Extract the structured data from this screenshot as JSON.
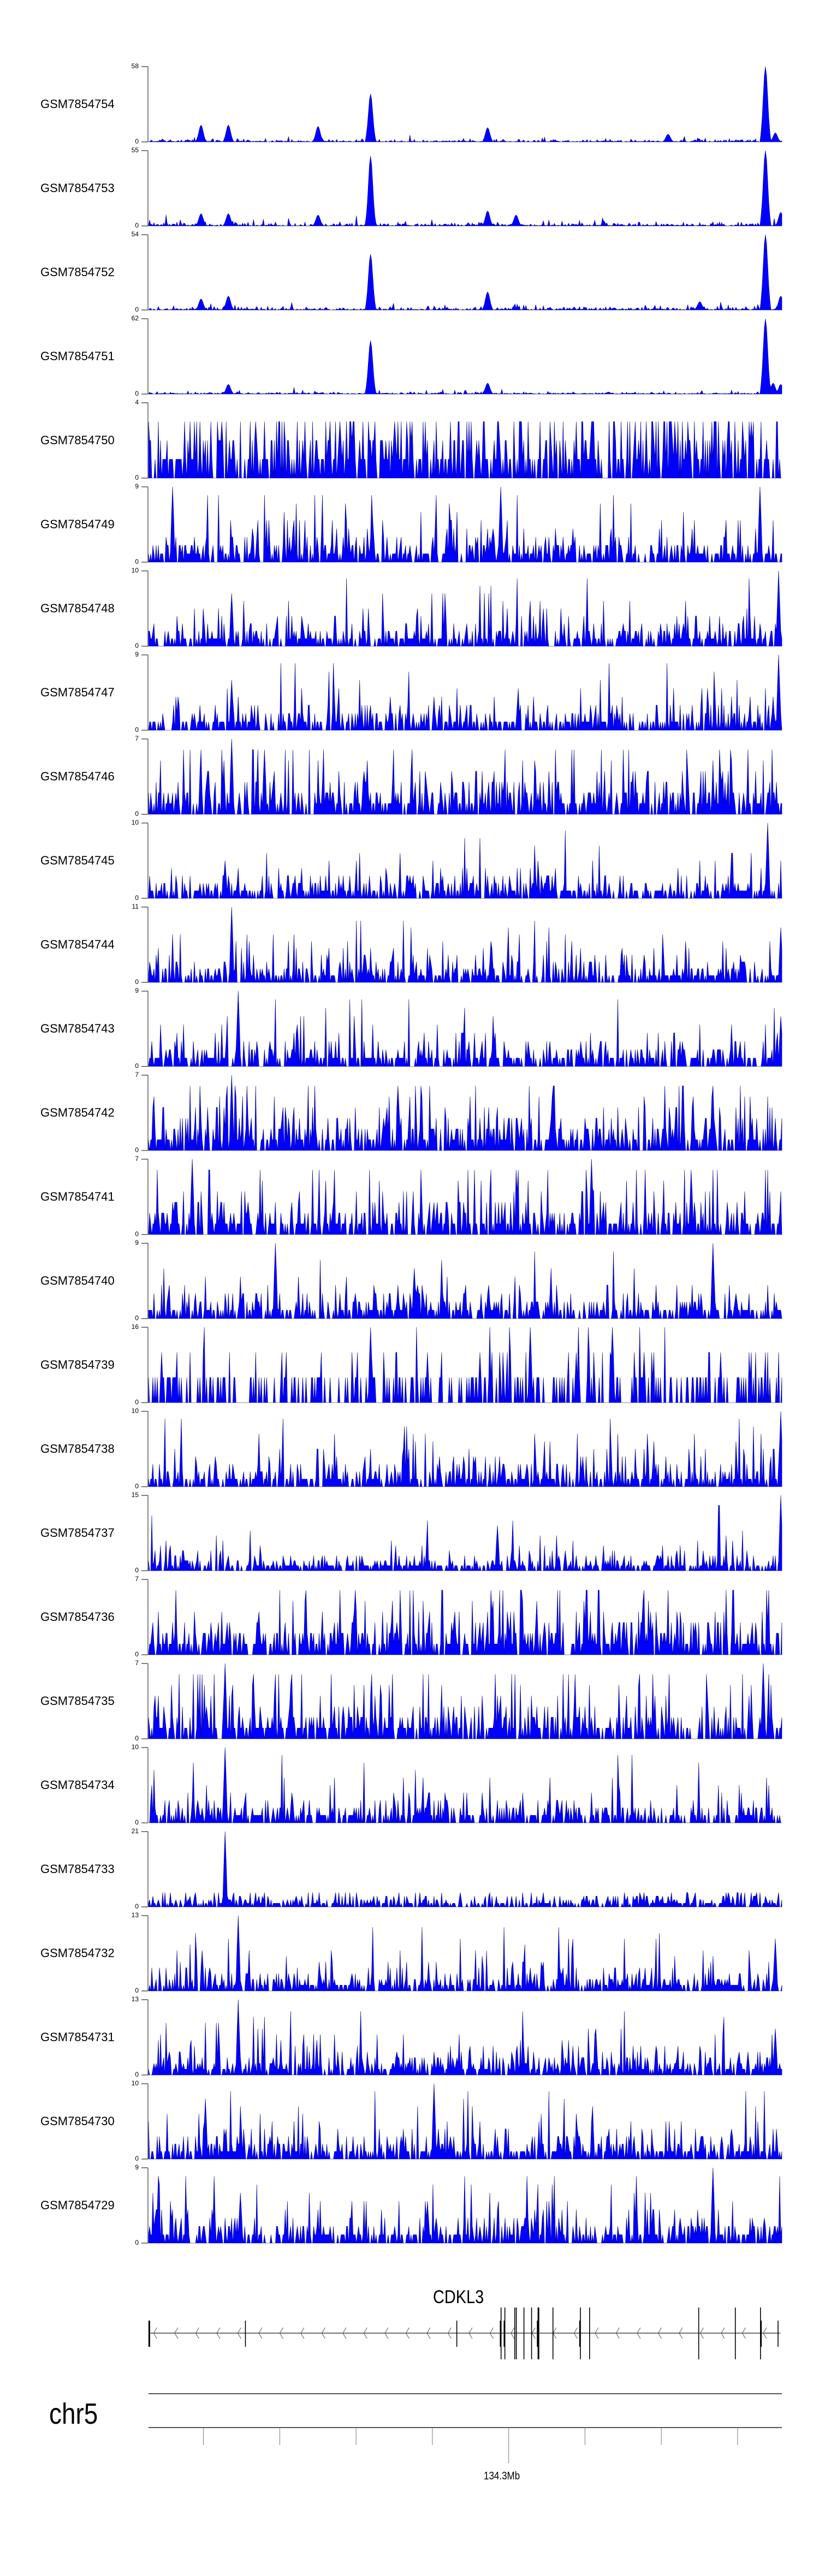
{
  "chart_data": {
    "type": "area",
    "title": "",
    "chromosome": "chr5",
    "xlim_mb": [
      134.2528,
      134.3358
    ],
    "x_ticks_mb": [
      134.26,
      134.27,
      134.28,
      134.29,
      134.3,
      134.31,
      134.32,
      134.33
    ],
    "x_tick_label": "134.3Mb",
    "x_tick_label_value": 134.3,
    "fill_color": "#0000ff",
    "stroke_color": "#00008b",
    "tracks": [
      {
        "name": "GSM7854754",
        "ymax": 58,
        "mean": 0.6,
        "peaks": [
          [
            134.2819,
            37
          ],
          [
            134.3336,
            58
          ],
          [
            134.2597,
            13
          ],
          [
            134.2633,
            13
          ],
          [
            134.275,
            12
          ],
          [
            134.2972,
            11
          ],
          [
            134.3209,
            6
          ],
          [
            134.335,
            7
          ]
        ]
      },
      {
        "name": "GSM7854753",
        "ymax": 55,
        "mean": 0.7,
        "peaks": [
          [
            134.2819,
            51
          ],
          [
            134.3336,
            55
          ],
          [
            134.2597,
            9
          ],
          [
            134.2633,
            9
          ],
          [
            134.275,
            8
          ],
          [
            134.2972,
            11
          ],
          [
            134.3009,
            8
          ],
          [
            134.3357,
            10
          ]
        ]
      },
      {
        "name": "GSM7854752",
        "ymax": 54,
        "mean": 0.7,
        "peaks": [
          [
            134.2819,
            40
          ],
          [
            134.3336,
            54
          ],
          [
            134.2597,
            8
          ],
          [
            134.2633,
            10
          ],
          [
            134.2972,
            13
          ],
          [
            134.325,
            6
          ],
          [
            134.3357,
            10
          ]
        ]
      },
      {
        "name": "GSM7854751",
        "ymax": 62,
        "mean": 0.5,
        "peaks": [
          [
            134.2819,
            44
          ],
          [
            134.3336,
            62
          ],
          [
            134.2633,
            8
          ],
          [
            134.2972,
            9
          ],
          [
            134.3347,
            9
          ],
          [
            134.3357,
            8
          ]
        ]
      },
      {
        "name": "GSM7854750",
        "ymax": 4,
        "mean": 1.4,
        "peaks": []
      },
      {
        "name": "GSM7854749",
        "ymax": 9,
        "mean": 1.3,
        "peaks": [
          [
            134.256,
            9
          ],
          [
            134.299,
            9
          ],
          [
            134.333,
            9
          ]
        ]
      },
      {
        "name": "GSM7854748",
        "ymax": 10,
        "mean": 1.2,
        "peaks": [
          [
            134.2637,
            7
          ],
          [
            134.3354,
            10
          ]
        ]
      },
      {
        "name": "GSM7854747",
        "ymax": 9,
        "mean": 1.1,
        "peaks": [
          [
            134.2637,
            6
          ],
          [
            134.3354,
            9
          ]
        ]
      },
      {
        "name": "GSM7854746",
        "ymax": 7,
        "mean": 1.3,
        "peaks": [
          [
            134.2637,
            7
          ],
          [
            134.268,
            6
          ]
        ]
      },
      {
        "name": "GSM7854745",
        "ymax": 10,
        "mean": 1.2,
        "peaks": [
          [
            134.2628,
            5
          ],
          [
            134.334,
            10
          ]
        ]
      },
      {
        "name": "GSM7854744",
        "ymax": 11,
        "mean": 1.3,
        "peaks": [
          [
            134.2637,
            11
          ],
          [
            134.3357,
            8
          ]
        ]
      },
      {
        "name": "GSM7854743",
        "ymax": 9,
        "mean": 1.1,
        "peaks": [
          [
            134.2645,
            9
          ],
          [
            134.3357,
            6
          ]
        ]
      },
      {
        "name": "GSM7854742",
        "ymax": 7,
        "mean": 1.4,
        "peaks": [
          [
            134.2637,
            7
          ]
        ]
      },
      {
        "name": "GSM7854741",
        "ymax": 7,
        "mean": 1.2,
        "peaks": [
          [
            134.2586,
            7
          ],
          [
            134.3109,
            7
          ]
        ]
      },
      {
        "name": "GSM7854740",
        "ymax": 9,
        "mean": 1.1,
        "peaks": [
          [
            134.2694,
            9
          ],
          [
            134.2877,
            6
          ],
          [
            134.3267,
            9
          ]
        ]
      },
      {
        "name": "GSM7854739",
        "ymax": 16,
        "mean": 2.2,
        "step": 5.333,
        "sparsity": 0.55,
        "peaks": [
          [
            134.2819,
            16
          ],
          [
            134.3028,
            16
          ],
          [
            134.3136,
            16
          ]
        ]
      },
      {
        "name": "GSM7854738",
        "ymax": 10,
        "mean": 1.3,
        "peaks": [
          [
            134.3357,
            10
          ]
        ]
      },
      {
        "name": "GSM7854737",
        "ymax": 15,
        "mean": 1.1,
        "peaks": [
          [
            134.2985,
            9
          ],
          [
            134.3357,
            15
          ]
        ]
      },
      {
        "name": "GSM7854736",
        "ymax": 7,
        "mean": 1.4,
        "peaks": []
      },
      {
        "name": "GSM7854735",
        "ymax": 7,
        "mean": 1.4,
        "peaks": [
          [
            134.2628,
            7
          ],
          [
            134.3334,
            7
          ]
        ]
      },
      {
        "name": "GSM7854734",
        "ymax": 10,
        "mean": 1.2,
        "peaks": [
          [
            134.2628,
            10
          ]
        ]
      },
      {
        "name": "GSM7854733",
        "ymax": 21,
        "mean": 1.3,
        "peaks": [
          [
            134.2628,
            21
          ]
        ]
      },
      {
        "name": "GSM7854732",
        "ymax": 13,
        "mean": 1.5,
        "peaks": [
          [
            134.2645,
            13
          ],
          [
            134.335,
            9
          ]
        ]
      },
      {
        "name": "GSM7854731",
        "ymax": 13,
        "mean": 1.5,
        "peaks": [
          [
            134.2645,
            13
          ],
          [
            134.335,
            8
          ]
        ]
      },
      {
        "name": "GSM7854730",
        "ymax": 10,
        "mean": 1.3,
        "peaks": [
          [
            134.2603,
            8
          ],
          [
            134.2902,
            10
          ]
        ]
      },
      {
        "name": "GSM7854729",
        "ymax": 9,
        "mean": 1.3,
        "peaks": [
          [
            134.3267,
            9
          ],
          [
            134.2648,
            6
          ]
        ]
      }
    ],
    "gene": {
      "name": "CDKL3",
      "strand": "-",
      "start_mb": 134.2529,
      "end_mb": 134.3356,
      "transcripts": [
        {
          "exons_mb": [
            134.299,
            134.2995,
            134.3008,
            134.301,
            134.302,
            134.303,
            134.3039,
            134.3058,
            134.3094,
            134.3106,
            134.3249,
            134.3297,
            134.333
          ]
        },
        {
          "exons_mb": [
            134.2529,
            134.2655,
            134.2932,
            134.2989,
            134.2994,
            134.3038,
            134.3093,
            134.3331,
            134.3353
          ]
        }
      ]
    }
  }
}
